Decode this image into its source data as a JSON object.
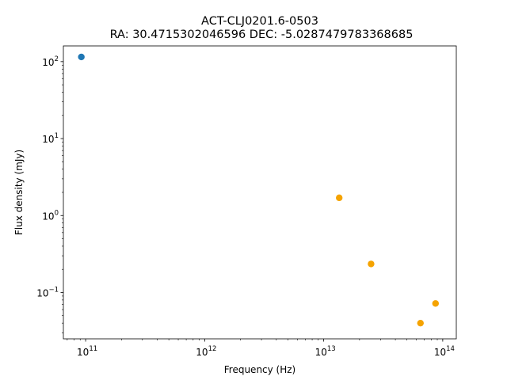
{
  "chart_data": {
    "type": "scatter",
    "title": "ACT-CLJ0201.6-0503",
    "subtitle": "RA: 30.4715302046596 DEC: -5.0287479783368685",
    "xlabel": "Frequency (Hz)",
    "ylabel": "Flux density (mJy)",
    "xscale": "log",
    "yscale": "log",
    "xlim": [
      65000000000.0,
      130000000000000.0
    ],
    "ylim": [
      0.025,
      160
    ],
    "grid": false,
    "x_ticks": [
      {
        "value": 100000000000.0,
        "base": "10",
        "exp": "11"
      },
      {
        "value": 1000000000000.0,
        "base": "10",
        "exp": "12"
      },
      {
        "value": 10000000000000.0,
        "base": "10",
        "exp": "13"
      },
      {
        "value": 100000000000000.0,
        "base": "10",
        "exp": "14"
      }
    ],
    "y_ticks": [
      {
        "value": 0.1,
        "base": "10",
        "exp": "−1"
      },
      {
        "value": 1,
        "base": "10",
        "exp": "0"
      },
      {
        "value": 10,
        "base": "10",
        "exp": "1"
      },
      {
        "value": 100,
        "base": "10",
        "exp": "2"
      }
    ],
    "series": [
      {
        "color": "#1f77b4",
        "points": [
          {
            "x": 92000000000.0,
            "y": 115
          }
        ]
      },
      {
        "color": "#f5a300",
        "points": [
          {
            "x": 13500000000000.0,
            "y": 1.7
          },
          {
            "x": 25000000000000.0,
            "y": 0.235
          },
          {
            "x": 65000000000000.0,
            "y": 0.04
          },
          {
            "x": 87000000000000.0,
            "y": 0.072
          }
        ]
      }
    ]
  }
}
